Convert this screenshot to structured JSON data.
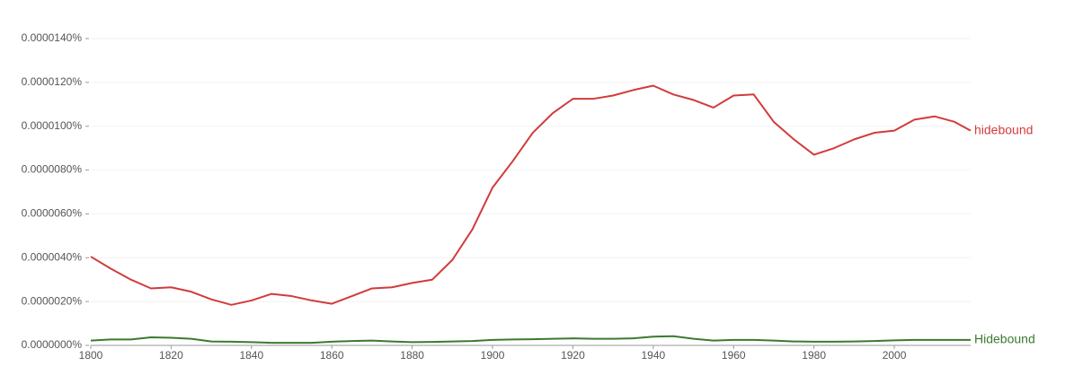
{
  "chart_data": {
    "type": "line",
    "x": [
      1800,
      1805,
      1810,
      1815,
      1820,
      1825,
      1830,
      1835,
      1840,
      1845,
      1850,
      1855,
      1860,
      1865,
      1870,
      1875,
      1880,
      1885,
      1890,
      1895,
      1900,
      1905,
      1910,
      1915,
      1920,
      1925,
      1930,
      1935,
      1940,
      1945,
      1950,
      1955,
      1960,
      1965,
      1970,
      1975,
      1980,
      1985,
      1990,
      1995,
      2000,
      2005,
      2010,
      2015,
      2019
    ],
    "series": [
      {
        "name": "hidebound",
        "color": "#d23b3b",
        "values": [
          4.05e-06,
          3.5e-06,
          3e-06,
          2.6e-06,
          2.65e-06,
          2.45e-06,
          2.1e-06,
          1.85e-06,
          2.05e-06,
          2.35e-06,
          2.25e-06,
          2.05e-06,
          1.9e-06,
          2.25e-06,
          2.6e-06,
          2.65e-06,
          2.85e-06,
          3e-06,
          3.9e-06,
          5.3e-06,
          7.2e-06,
          8.4e-06,
          9.7e-06,
          1.06e-05,
          1.125e-05,
          1.125e-05,
          1.14e-05,
          1.165e-05,
          1.185e-05,
          1.145e-05,
          1.12e-05,
          1.085e-05,
          1.14e-05,
          1.145e-05,
          1.02e-05,
          9.4e-06,
          8.7e-06,
          9e-06,
          9.4e-06,
          9.7e-06,
          9.8e-06,
          1.03e-05,
          1.045e-05,
          1.02e-05,
          9.8e-06
        ]
      },
      {
        "name": "Hidebound",
        "color": "#3b7a2f",
        "values": [
          2.2e-07,
          2.7e-07,
          2.7e-07,
          3.7e-07,
          3.5e-07,
          3e-07,
          1.8e-07,
          1.7e-07,
          1.5e-07,
          1.2e-07,
          1.2e-07,
          1.2e-07,
          1.7e-07,
          2e-07,
          2.2e-07,
          1.8e-07,
          1.5e-07,
          1.6e-07,
          1.8e-07,
          2e-07,
          2.5e-07,
          2.7e-07,
          2.8e-07,
          3e-07,
          3.2e-07,
          3e-07,
          3e-07,
          3.2e-07,
          4e-07,
          4.2e-07,
          3e-07,
          2.2e-07,
          2.5e-07,
          2.5e-07,
          2.2e-07,
          1.8e-07,
          1.7e-07,
          1.7e-07,
          1.8e-07,
          2e-07,
          2.3e-07,
          2.5e-07,
          2.5e-07,
          2.5e-07,
          2.5e-07
        ]
      }
    ],
    "xlim": [
      1800,
      2019
    ],
    "xticks": [
      1800,
      1820,
      1840,
      1860,
      1880,
      1900,
      1920,
      1940,
      1960,
      1980,
      2000
    ],
    "ylim": [
      0,
      1.4e-05
    ],
    "yticks": [
      {
        "value": 0,
        "label": "0.0000000%"
      },
      {
        "value": 2e-06,
        "label": "0.0000020%"
      },
      {
        "value": 4e-06,
        "label": "0.0000040%"
      },
      {
        "value": 6e-06,
        "label": "0.0000060%"
      },
      {
        "value": 8e-06,
        "label": "0.0000080%"
      },
      {
        "value": 1e-05,
        "label": "0.0000100%"
      },
      {
        "value": 1.2e-05,
        "label": "0.0000120%"
      },
      {
        "value": 1.4e-05,
        "label": "0.0000140%"
      }
    ],
    "grid": true
  }
}
